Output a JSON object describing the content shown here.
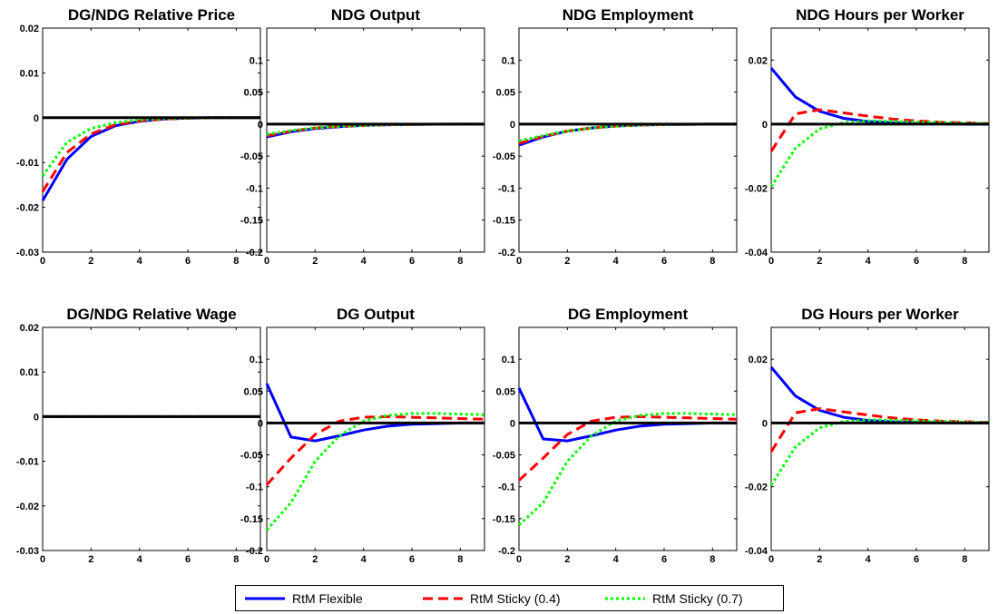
{
  "chart_data": [
    {
      "type": "line",
      "title": "DG/NDG Relative Price",
      "xlim": [
        0,
        9
      ],
      "ylim": [
        -0.03,
        0.02
      ],
      "xticks": [
        "0",
        "2",
        "4",
        "6",
        "8"
      ],
      "yticks": [
        "0.02",
        "0.01",
        "0",
        "-0.01",
        "-0.02",
        "-0.03"
      ],
      "x": [
        0,
        1,
        2,
        3,
        4,
        5,
        6,
        7,
        8,
        9
      ],
      "series": [
        {
          "name": "RtM Flexible",
          "values": [
            -0.0185,
            -0.0093,
            -0.0042,
            -0.0018,
            -0.0008,
            -0.0003,
            -0.0001,
            0,
            0,
            0
          ]
        },
        {
          "name": "RtM Sticky (0.4)",
          "values": [
            -0.0165,
            -0.0078,
            -0.0036,
            -0.0016,
            -0.0007,
            -0.0003,
            -0.0001,
            0,
            0,
            0
          ]
        },
        {
          "name": "RtM Sticky (0.7)",
          "values": [
            -0.013,
            -0.0055,
            -0.0024,
            -0.0011,
            -0.0005,
            -0.0002,
            -0.0001,
            0,
            0,
            0
          ]
        }
      ]
    },
    {
      "type": "line",
      "title": "NDG Output",
      "xlim": [
        0,
        9
      ],
      "ylim": [
        -0.2,
        0.15
      ],
      "xticks": [
        "0",
        "2",
        "4",
        "6",
        "8"
      ],
      "yticks": [
        "0.1",
        "0.05",
        "0",
        "-0.05",
        "-0.1",
        "-0.15",
        "-0.2"
      ],
      "x": [
        0,
        1,
        2,
        3,
        4,
        5,
        6,
        7,
        8,
        9
      ],
      "series": [
        {
          "name": "RtM Flexible",
          "values": [
            -0.02,
            -0.012,
            -0.007,
            -0.004,
            -0.002,
            -0.001,
            -0.0005,
            -0.0002,
            0,
            0
          ]
        },
        {
          "name": "RtM Sticky (0.4)",
          "values": [
            -0.018,
            -0.011,
            -0.006,
            -0.0035,
            -0.002,
            -0.001,
            -0.0005,
            -0.0002,
            0,
            0
          ]
        },
        {
          "name": "RtM Sticky (0.7)",
          "values": [
            -0.016,
            -0.01,
            -0.006,
            -0.0035,
            -0.002,
            -0.001,
            -0.0005,
            -0.0002,
            0,
            0
          ]
        }
      ]
    },
    {
      "type": "line",
      "title": "NDG Employment",
      "xlim": [
        0,
        9
      ],
      "ylim": [
        -0.2,
        0.15
      ],
      "xticks": [
        "0",
        "2",
        "4",
        "6",
        "8"
      ],
      "yticks": [
        "0.1",
        "0.05",
        "0",
        "-0.05",
        "-0.1",
        "-0.15",
        "-0.2"
      ],
      "x": [
        0,
        1,
        2,
        3,
        4,
        5,
        6,
        7,
        8,
        9
      ],
      "series": [
        {
          "name": "RtM Flexible",
          "values": [
            -0.033,
            -0.02,
            -0.011,
            -0.006,
            -0.003,
            -0.0015,
            -0.0007,
            -0.0003,
            -0.0001,
            0
          ]
        },
        {
          "name": "RtM Sticky (0.4)",
          "values": [
            -0.03,
            -0.019,
            -0.011,
            -0.006,
            -0.003,
            -0.0015,
            -0.0007,
            -0.0003,
            -0.0001,
            0
          ]
        },
        {
          "name": "RtM Sticky (0.7)",
          "values": [
            -0.026,
            -0.018,
            -0.011,
            -0.006,
            -0.003,
            -0.0015,
            -0.0007,
            -0.0003,
            -0.0001,
            0
          ]
        }
      ]
    },
    {
      "type": "line",
      "title": "NDG Hours per Worker",
      "xlim": [
        0,
        9
      ],
      "ylim": [
        -0.04,
        0.03
      ],
      "xticks": [
        "0",
        "2",
        "4",
        "6",
        "8"
      ],
      "yticks": [
        "0.02",
        "0",
        "-0.02",
        "-0.04"
      ],
      "x": [
        0,
        1,
        2,
        3,
        4,
        5,
        6,
        7,
        8,
        9
      ],
      "series": [
        {
          "name": "RtM Flexible",
          "values": [
            0.0175,
            0.0085,
            0.004,
            0.0018,
            0.0008,
            0.0004,
            0.0002,
            0.0001,
            0,
            0
          ]
        },
        {
          "name": "RtM Sticky (0.4)",
          "values": [
            -0.0085,
            0.0032,
            0.0045,
            0.0035,
            0.0025,
            0.0016,
            0.001,
            0.0006,
            0.0004,
            0.0002
          ]
        },
        {
          "name": "RtM Sticky (0.7)",
          "values": [
            -0.0195,
            -0.0075,
            -0.0015,
            0.0005,
            0.001,
            0.0009,
            0.0007,
            0.0005,
            0.0003,
            0.0002
          ]
        }
      ]
    },
    {
      "type": "line",
      "title": "DG/NDG Relative Wage",
      "xlim": [
        0,
        9
      ],
      "ylim": [
        -0.03,
        0.02
      ],
      "xticks": [
        "0",
        "2",
        "4",
        "6",
        "8"
      ],
      "yticks": [
        "0.02",
        "0.01",
        "0",
        "-0.01",
        "-0.02",
        "-0.03"
      ],
      "x": [
        0,
        1,
        2,
        3,
        4,
        5,
        6,
        7,
        8,
        9
      ],
      "series": [
        {
          "name": "RtM Flexible",
          "values": [
            0,
            0,
            0,
            0,
            0,
            0,
            0,
            0,
            0,
            0
          ]
        },
        {
          "name": "RtM Sticky (0.4)",
          "values": [
            0,
            0,
            0,
            0,
            0,
            0,
            0,
            0,
            0,
            0
          ]
        },
        {
          "name": "RtM Sticky (0.7)",
          "values": [
            0,
            0,
            0,
            0,
            0,
            0,
            0,
            0,
            0,
            0
          ]
        }
      ]
    },
    {
      "type": "line",
      "title": "DG Output",
      "xlim": [
        0,
        9
      ],
      "ylim": [
        -0.2,
        0.15
      ],
      "xticks": [
        "0",
        "2",
        "4",
        "6",
        "8"
      ],
      "yticks": [
        "0.1",
        "0.05",
        "0",
        "-0.05",
        "-0.1",
        "-0.15",
        "-0.2"
      ],
      "x": [
        0,
        1,
        2,
        3,
        4,
        5,
        6,
        7,
        8,
        9
      ],
      "series": [
        {
          "name": "RtM Flexible",
          "values": [
            0.062,
            -0.022,
            -0.028,
            -0.02,
            -0.011,
            -0.005,
            -0.002,
            -0.001,
            0,
            0
          ]
        },
        {
          "name": "RtM Sticky (0.4)",
          "values": [
            -0.097,
            -0.055,
            -0.018,
            0.003,
            0.009,
            0.01,
            0.009,
            0.008,
            0.007,
            0.006
          ]
        },
        {
          "name": "RtM Sticky (0.7)",
          "values": [
            -0.168,
            -0.125,
            -0.06,
            -0.02,
            0.003,
            0.012,
            0.015,
            0.015,
            0.014,
            0.013
          ]
        }
      ]
    },
    {
      "type": "line",
      "title": "DG Employment",
      "xlim": [
        0,
        9
      ],
      "ylim": [
        -0.2,
        0.15
      ],
      "xticks": [
        "0",
        "2",
        "4",
        "6",
        "8"
      ],
      "yticks": [
        "0.1",
        "0.05",
        "0",
        "-0.05",
        "-0.1",
        "-0.15",
        "-0.2"
      ],
      "x": [
        0,
        1,
        2,
        3,
        4,
        5,
        6,
        7,
        8,
        9
      ],
      "series": [
        {
          "name": "RtM Flexible",
          "values": [
            0.055,
            -0.025,
            -0.028,
            -0.02,
            -0.011,
            -0.005,
            -0.002,
            -0.001,
            0,
            0
          ]
        },
        {
          "name": "RtM Sticky (0.4)",
          "values": [
            -0.09,
            -0.055,
            -0.018,
            0.003,
            0.009,
            0.01,
            0.009,
            0.008,
            0.007,
            0.006
          ]
        },
        {
          "name": "RtM Sticky (0.7)",
          "values": [
            -0.16,
            -0.125,
            -0.06,
            -0.02,
            0.003,
            0.012,
            0.015,
            0.015,
            0.014,
            0.013
          ]
        }
      ]
    },
    {
      "type": "line",
      "title": "DG Hours per Worker",
      "xlim": [
        0,
        9
      ],
      "ylim": [
        -0.04,
        0.03
      ],
      "xticks": [
        "0",
        "2",
        "4",
        "6",
        "8"
      ],
      "yticks": [
        "0.02",
        "0",
        "-0.02",
        "-0.04"
      ],
      "x": [
        0,
        1,
        2,
        3,
        4,
        5,
        6,
        7,
        8,
        9
      ],
      "series": [
        {
          "name": "RtM Flexible",
          "values": [
            0.0175,
            0.0085,
            0.004,
            0.0018,
            0.0008,
            0.0004,
            0.0002,
            0.0001,
            0,
            0
          ]
        },
        {
          "name": "RtM Sticky (0.4)",
          "values": [
            -0.009,
            0.0032,
            0.0045,
            0.0035,
            0.0025,
            0.0016,
            0.001,
            0.0006,
            0.0004,
            0.0002
          ]
        },
        {
          "name": "RtM Sticky (0.7)",
          "values": [
            -0.0195,
            -0.0075,
            -0.0015,
            0.0005,
            0.001,
            0.0009,
            0.0007,
            0.0005,
            0.0003,
            0.0002
          ]
        }
      ]
    }
  ],
  "legend": {
    "items": [
      {
        "label": "RtM Flexible",
        "color": "#0000ff",
        "style": "solid"
      },
      {
        "label": "RtM Sticky (0.4)",
        "color": "#ff0000",
        "style": "dashed"
      },
      {
        "label": "RtM Sticky (0.7)",
        "color": "#00ff00",
        "style": "dotted"
      }
    ]
  }
}
